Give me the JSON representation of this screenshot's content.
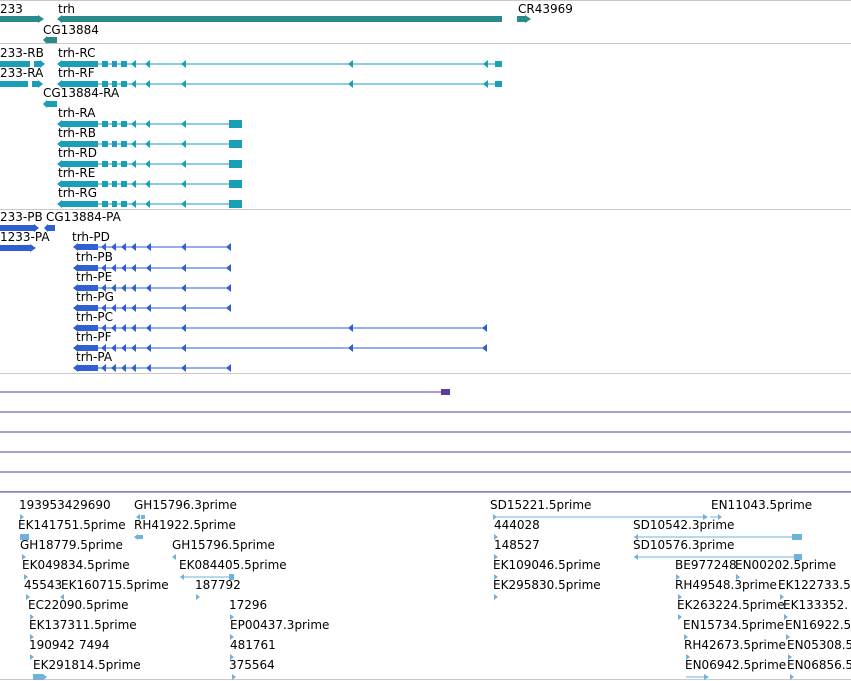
{
  "colors": {
    "gene": "#2a8a8a",
    "transcript": "#1a9fb8",
    "protein": "#2f5fd0",
    "purple": "#5a3ea0",
    "est": "#6fb2de",
    "separator": "#c9c9c9"
  },
  "genes": {
    "left_gene": "233",
    "trh": "trh",
    "cr43969": "CR43969",
    "cg13884": "CG13884"
  },
  "transcripts": {
    "left_rb": "233-RB",
    "left_ra": "233-RA",
    "trh_rc": "trh-RC",
    "trh_rf": "trh-RF",
    "cg13884_ra": "CG13884-RA",
    "trh_ra": "trh-RA",
    "trh_rb": "trh-RB",
    "trh_rd": "trh-RD",
    "trh_re": "trh-RE",
    "trh_rg": "trh-RG"
  },
  "proteins": {
    "left_pb": "233-PB",
    "cg13884_pa": "CG13884-PA",
    "left_pa": "1233-PA",
    "trh_pd": "trh-PD",
    "trh_pb": "trh-PB",
    "trh_pe": "trh-PE",
    "trh_pg": "trh-PG",
    "trh_pc": "trh-PC",
    "trh_pf": "trh-PF",
    "trh_pa": "trh-PA"
  },
  "ests": [
    "193953429690",
    "GH15796.3prime",
    "SD15221.5prime",
    "EN11043.5prime",
    "EK141751.5prime",
    "RH41922.5prime",
    "444028",
    "SD10542.3prime",
    "GH18779.5prime",
    "GH15796.5prime",
    "148527",
    "SD10576.3prime",
    "EK049834.5prime",
    "EK084405.5prime",
    "EK109046.5prime",
    "BE977248",
    "EN00202.5prime",
    "45543",
    "EK160715.5prime",
    "187792",
    "EK295830.5prime",
    "RH49548.3prime",
    "EK122733.5",
    "EC22090.5prime",
    "17296",
    "EK263224.5prime",
    "EK133352.",
    "EK137311.5prime",
    "EP00437.3prime",
    "EN15734.5prime",
    "EN16922.5",
    "190942",
    "7494",
    "481761",
    "RH42673.5prime",
    "EN05308.5",
    "EK291814.5prime",
    "375564",
    "EN06942.5prime",
    "EN06856.5"
  ]
}
